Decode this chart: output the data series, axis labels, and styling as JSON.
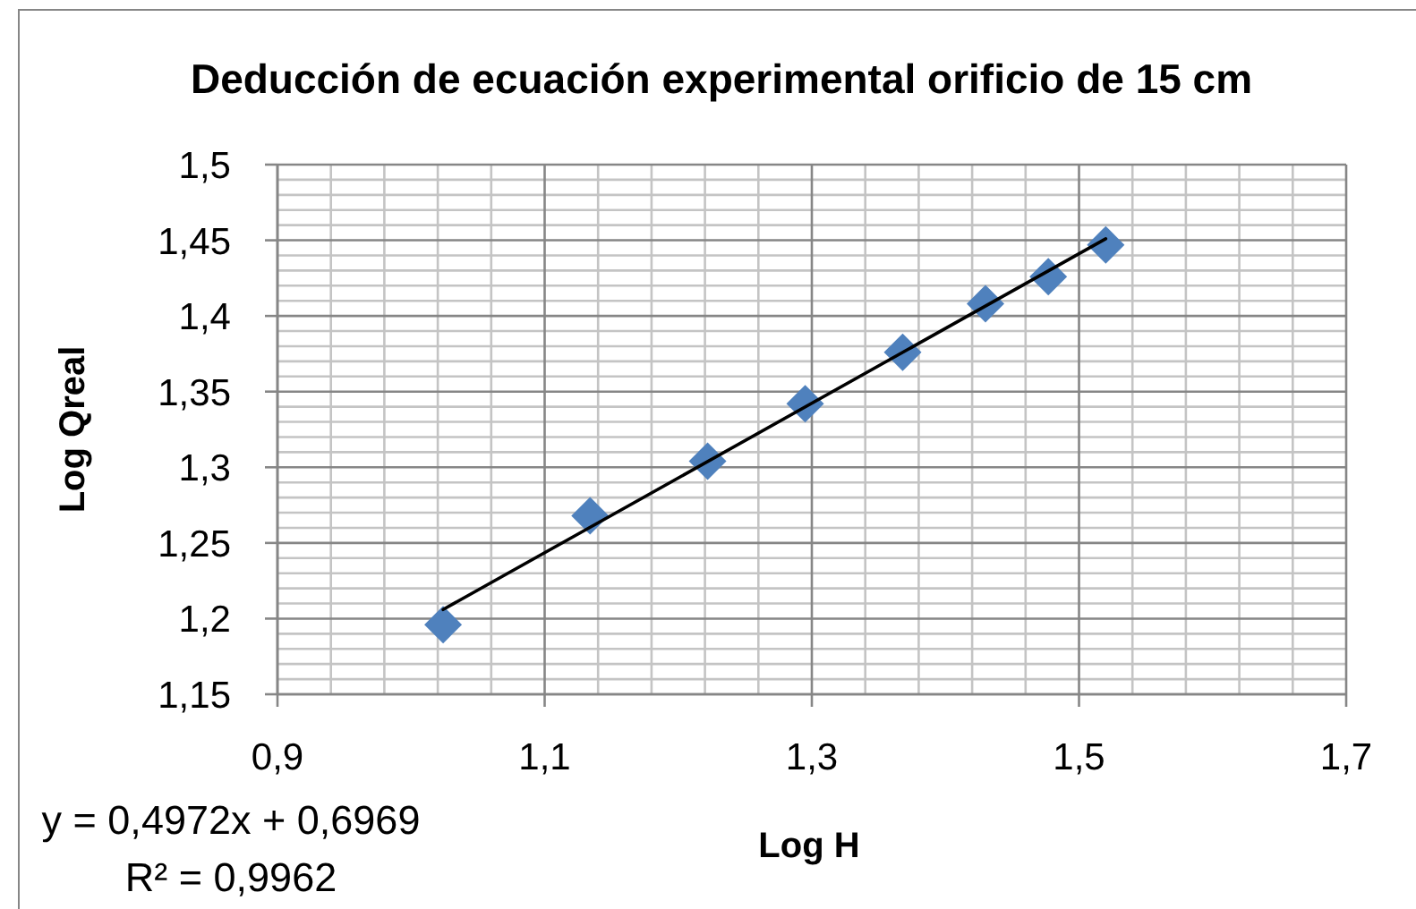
{
  "chart_data": {
    "type": "scatter",
    "title": "Deducción de ecuación experimental orificio de 15 cm",
    "xlabel": "Log H",
    "ylabel": "Log Qreal",
    "annotations": [
      "y = 0,4972x + 0,6969",
      "R² = 0,9962"
    ],
    "series": [
      {
        "color": "#4f81bd",
        "x": [
          1.024,
          1.134,
          1.222,
          1.295,
          1.368,
          1.43,
          1.477,
          1.52
        ],
        "values": [
          1.196,
          1.268,
          1.304,
          1.342,
          1.376,
          1.408,
          1.426,
          1.447
        ]
      },
      {
        "type": "line",
        "color": "#000000",
        "marker": "none",
        "x": [
          1.024,
          1.52
        ],
        "values": [
          1.206,
          1.451
        ]
      }
    ],
    "marker": "diamond",
    "grid": true,
    "xlim": [
      0.9,
      1.7
    ],
    "ylim": [
      1.15,
      1.5
    ],
    "xticks": [
      {
        "value": 0.9,
        "label": "0,9"
      },
      {
        "value": 0.94,
        "label": null
      },
      {
        "value": 0.98,
        "label": null
      },
      {
        "value": 1.02,
        "label": null
      },
      {
        "value": 1.06,
        "label": null
      },
      {
        "value": 1.1,
        "label": "1,1"
      },
      {
        "value": 1.14,
        "label": null
      },
      {
        "value": 1.18,
        "label": null
      },
      {
        "value": 1.22,
        "label": null
      },
      {
        "value": 1.26,
        "label": null
      },
      {
        "value": 1.3,
        "label": "1,3"
      },
      {
        "value": 1.34,
        "label": null
      },
      {
        "value": 1.38,
        "label": null
      },
      {
        "value": 1.42,
        "label": null
      },
      {
        "value": 1.46,
        "label": null
      },
      {
        "value": 1.5,
        "label": "1,5"
      },
      {
        "value": 1.54,
        "label": null
      },
      {
        "value": 1.58,
        "label": null
      },
      {
        "value": 1.62,
        "label": null
      },
      {
        "value": 1.66,
        "label": null
      },
      {
        "value": 1.7,
        "label": "1,7"
      }
    ],
    "yticks": [
      {
        "value": 1.15,
        "label": "1,15"
      },
      {
        "value": 1.16,
        "label": null
      },
      {
        "value": 1.17,
        "label": null
      },
      {
        "value": 1.18,
        "label": null
      },
      {
        "value": 1.19,
        "label": null
      },
      {
        "value": 1.2,
        "label": "1,2"
      },
      {
        "value": 1.21,
        "label": null
      },
      {
        "value": 1.22,
        "label": null
      },
      {
        "value": 1.23,
        "label": null
      },
      {
        "value": 1.24,
        "label": null
      },
      {
        "value": 1.25,
        "label": "1,25"
      },
      {
        "value": 1.26,
        "label": null
      },
      {
        "value": 1.27,
        "label": null
      },
      {
        "value": 1.28,
        "label": null
      },
      {
        "value": 1.29,
        "label": null
      },
      {
        "value": 1.3,
        "label": "1,3"
      },
      {
        "value": 1.31,
        "label": null
      },
      {
        "value": 1.32,
        "label": null
      },
      {
        "value": 1.33,
        "label": null
      },
      {
        "value": 1.34,
        "label": null
      },
      {
        "value": 1.35,
        "label": "1,35"
      },
      {
        "value": 1.36,
        "label": null
      },
      {
        "value": 1.37,
        "label": null
      },
      {
        "value": 1.38,
        "label": null
      },
      {
        "value": 1.39,
        "label": null
      },
      {
        "value": 1.4,
        "label": "1,4"
      },
      {
        "value": 1.41,
        "label": null
      },
      {
        "value": 1.42,
        "label": null
      },
      {
        "value": 1.43,
        "label": null
      },
      {
        "value": 1.44,
        "label": null
      },
      {
        "value": 1.45,
        "label": "1,45"
      },
      {
        "value": 1.46,
        "label": null
      },
      {
        "value": 1.47,
        "label": null
      },
      {
        "value": 1.48,
        "label": null
      },
      {
        "value": 1.49,
        "label": null
      },
      {
        "value": 1.5,
        "label": "1,5"
      }
    ]
  }
}
